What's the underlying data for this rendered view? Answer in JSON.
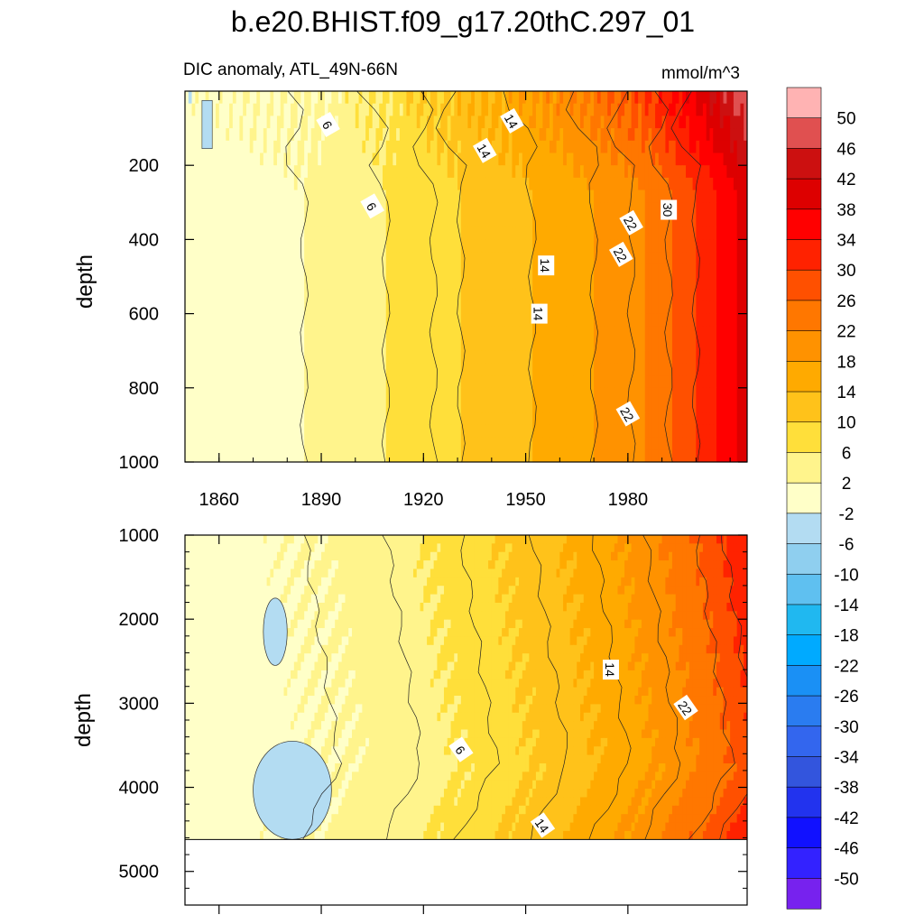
{
  "chart_data": [
    {
      "type": "heatmap",
      "title": "b.e20.BHIST.f09_g17.20thC.297_01",
      "subtitle": "DIC anomaly, ATL_49N-66N",
      "units": "mmol/m^3",
      "ylabel": "depth",
      "xlim": [
        1850,
        2015
      ],
      "ylim": [
        1000,
        0
      ],
      "y_reversed": true,
      "x_ticks": [
        "1860",
        "1890",
        "1920",
        "1950",
        "1980"
      ],
      "y_ticks": [
        "200",
        "400",
        "600",
        "800",
        "1000"
      ],
      "x": [
        1850,
        1885,
        1909,
        1931,
        1952,
        1970,
        1985,
        2000,
        2015
      ],
      "series": [
        {
          "values": [
            0,
            2,
            6,
            10,
            14,
            18,
            22,
            30,
            40
          ]
        }
      ],
      "contour_labels": [
        {
          "text": "6",
          "x": 1892,
          "depth": 90
        },
        {
          "text": "14",
          "x": 1938,
          "depth": 160
        },
        {
          "text": "14",
          "x": 1946,
          "depth": 80
        },
        {
          "text": "6",
          "x": 1905,
          "depth": 310
        },
        {
          "text": "22",
          "x": 1981,
          "depth": 355
        },
        {
          "text": "30",
          "x": 1992,
          "depth": 320
        },
        {
          "text": "22",
          "x": 1978,
          "depth": 440
        },
        {
          "text": "14",
          "x": 1956,
          "depth": 470
        },
        {
          "text": "14",
          "x": 1954,
          "depth": 600
        },
        {
          "text": "22",
          "x": 1980,
          "depth": 870
        }
      ]
    },
    {
      "type": "heatmap",
      "ylabel": "depth",
      "xlim": [
        1850,
        2015
      ],
      "ylim": [
        5400,
        1000
      ],
      "y_reversed": true,
      "data_bottom": 4620,
      "y_ticks": [
        "1000",
        "2000",
        "3000",
        "4000",
        "5000"
      ],
      "x": [
        1850,
        1885,
        1909,
        1931,
        1952,
        1970,
        1985,
        2000,
        2015
      ],
      "series": [
        {
          "values": [
            0,
            2,
            4,
            8,
            12,
            16,
            20,
            26,
            34
          ]
        }
      ],
      "negative_patches": [
        {
          "x": [
            1873,
            1880
          ],
          "depth": [
            1750,
            2550
          ]
        },
        {
          "x": [
            1870,
            1893
          ],
          "depth": [
            3450,
            4620
          ]
        }
      ],
      "contour_labels": [
        {
          "text": "14",
          "x": 1975,
          "depth": 2600
        },
        {
          "text": "22",
          "x": 1997,
          "depth": 3050
        },
        {
          "text": "6",
          "x": 1931,
          "depth": 3550
        },
        {
          "text": "14",
          "x": 1955,
          "depth": 4450
        }
      ]
    }
  ],
  "colorbar": {
    "labels": [
      "50",
      "46",
      "42",
      "38",
      "34",
      "30",
      "26",
      "22",
      "18",
      "14",
      "10",
      "6",
      "2",
      "-2",
      "-6",
      "-10",
      "-14",
      "-18",
      "-22",
      "-26",
      "-30",
      "-34",
      "-38",
      "-42",
      "-46",
      "-50"
    ],
    "colors": [
      "#ffb3b3",
      "#e05050",
      "#cc1010",
      "#dd0000",
      "#ff0000",
      "#ff2200",
      "#ff5000",
      "#ff7700",
      "#ff9200",
      "#ffaa00",
      "#ffc21a",
      "#ffdf3a",
      "#fff48c",
      "#ffffc8",
      "#b3dcf2",
      "#8fcfef",
      "#5fc0f0",
      "#20b8f0",
      "#00aaff",
      "#1a90f5",
      "#2a7cf0",
      "#3366ee",
      "#3355dd",
      "#2233ee",
      "#1111ff",
      "#3322ff",
      "#7722ee"
    ]
  }
}
